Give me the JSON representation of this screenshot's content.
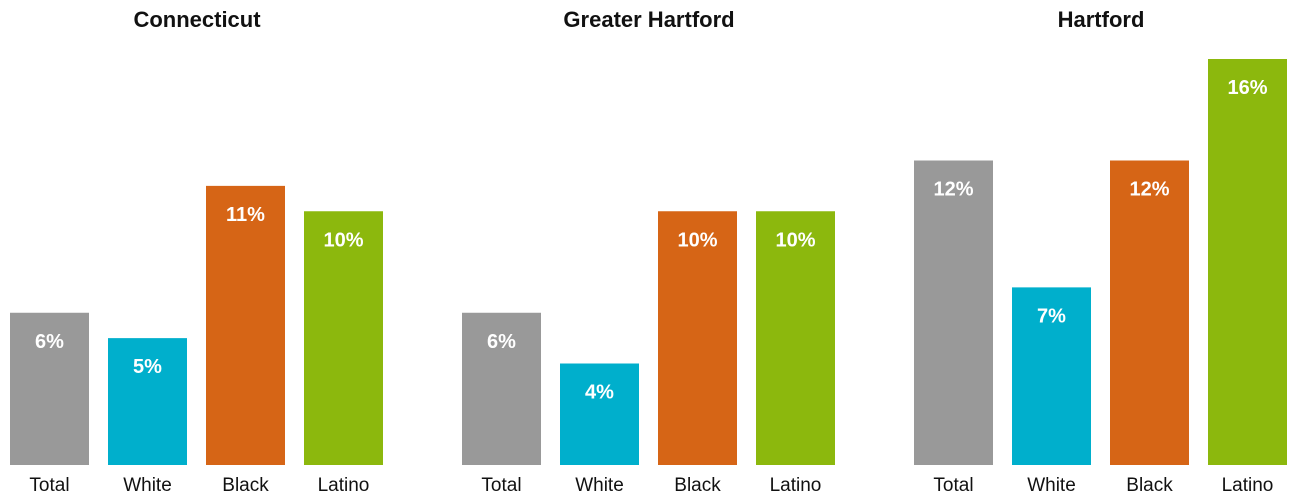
{
  "chart_data": [
    {
      "type": "bar",
      "title": "Connecticut",
      "categories": [
        "Total",
        "White",
        "Black",
        "Latino"
      ],
      "values": [
        6,
        5,
        11,
        10
      ],
      "value_labels": [
        "6%",
        "5%",
        "11%",
        "10%"
      ],
      "ylim": [
        0,
        16
      ],
      "grid": false,
      "colors": [
        "#999999",
        "#00afcc",
        "#d66516",
        "#8cb80d"
      ]
    },
    {
      "type": "bar",
      "title": "Greater Hartford",
      "categories": [
        "Total",
        "White",
        "Black",
        "Latino"
      ],
      "values": [
        6,
        4,
        10,
        10
      ],
      "value_labels": [
        "6%",
        "4%",
        "10%",
        "10%"
      ],
      "ylim": [
        0,
        16
      ],
      "grid": false,
      "colors": [
        "#999999",
        "#00afcc",
        "#d66516",
        "#8cb80d"
      ]
    },
    {
      "type": "bar",
      "title": "Hartford",
      "categories": [
        "Total",
        "White",
        "Black",
        "Latino"
      ],
      "values": [
        12,
        7,
        12,
        16
      ],
      "value_labels": [
        "12%",
        "7%",
        "12%",
        "16%"
      ],
      "ylim": [
        0,
        16
      ],
      "grid": false,
      "colors": [
        "#999999",
        "#00afcc",
        "#d66516",
        "#8cb80d"
      ]
    }
  ]
}
